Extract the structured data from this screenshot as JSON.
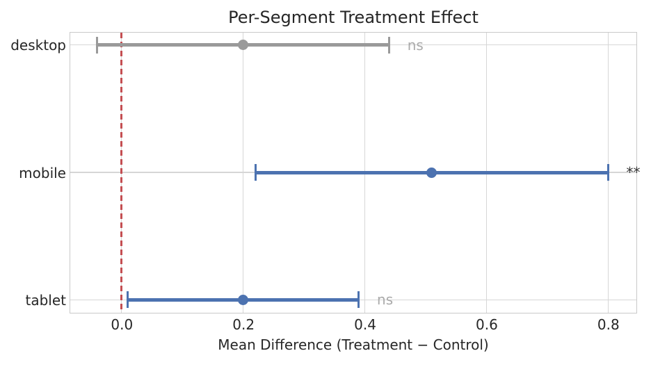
{
  "chart_data": {
    "type": "scatter",
    "variant": "horizontal-errorbar",
    "title": "Per-Segment Treatment Effect",
    "xlabel": "Mean Difference (Treatment − Control)",
    "ylabel": "",
    "categories": [
      "desktop",
      "mobile",
      "tablet"
    ],
    "points": [
      {
        "segment": "desktop",
        "mean": 0.2,
        "ci_low": -0.04,
        "ci_high": 0.44,
        "significance": "ns",
        "color": "#9a9a9a",
        "sig_color": "#aaaaaa"
      },
      {
        "segment": "mobile",
        "mean": 0.51,
        "ci_low": 0.22,
        "ci_high": 0.8,
        "significance": "**",
        "color": "#4C72B0",
        "sig_color": "#333333"
      },
      {
        "segment": "tablet",
        "mean": 0.2,
        "ci_low": 0.01,
        "ci_high": 0.39,
        "significance": "ns",
        "color": "#4C72B0",
        "sig_color": "#aaaaaa"
      }
    ],
    "x_ticks": [
      {
        "label": "0.0",
        "value": 0.0
      },
      {
        "label": "0.2",
        "value": 0.2
      },
      {
        "label": "0.4",
        "value": 0.4
      },
      {
        "label": "0.6",
        "value": 0.6
      },
      {
        "label": "0.8",
        "value": 0.8
      }
    ],
    "xlim": [
      -0.085,
      0.846
    ],
    "reference_line": {
      "x": 0.0,
      "style": "dashed",
      "color": "#C44E52"
    },
    "grid": true,
    "legend": false
  }
}
